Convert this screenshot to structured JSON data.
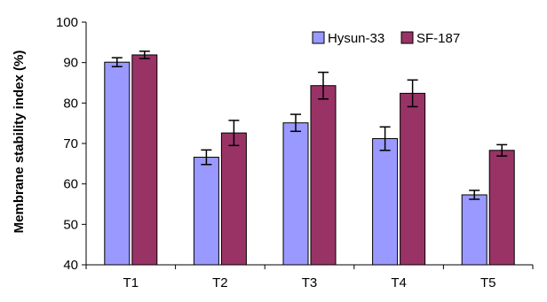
{
  "chart_data": {
    "type": "bar",
    "title": "",
    "xlabel": "",
    "ylabel": "Membrane stability index (%)",
    "ylim": [
      40,
      100
    ],
    "yticks": [
      40,
      50,
      60,
      70,
      80,
      90,
      100
    ],
    "grid": false,
    "legend_position": "top-right",
    "categories": [
      "T1",
      "T2",
      "T3",
      "T4",
      "T5"
    ],
    "series": [
      {
        "name": "Hysun-33",
        "color": "#9999ff",
        "values": [
          90.1,
          66.6,
          75.1,
          71.2,
          57.3
        ],
        "errors": [
          1.1,
          1.8,
          2.1,
          2.9,
          1.1
        ]
      },
      {
        "name": "SF-187",
        "color": "#993366",
        "values": [
          91.9,
          72.6,
          84.3,
          82.4,
          68.3
        ],
        "errors": [
          0.9,
          3.1,
          3.3,
          3.3,
          1.4
        ]
      }
    ]
  }
}
